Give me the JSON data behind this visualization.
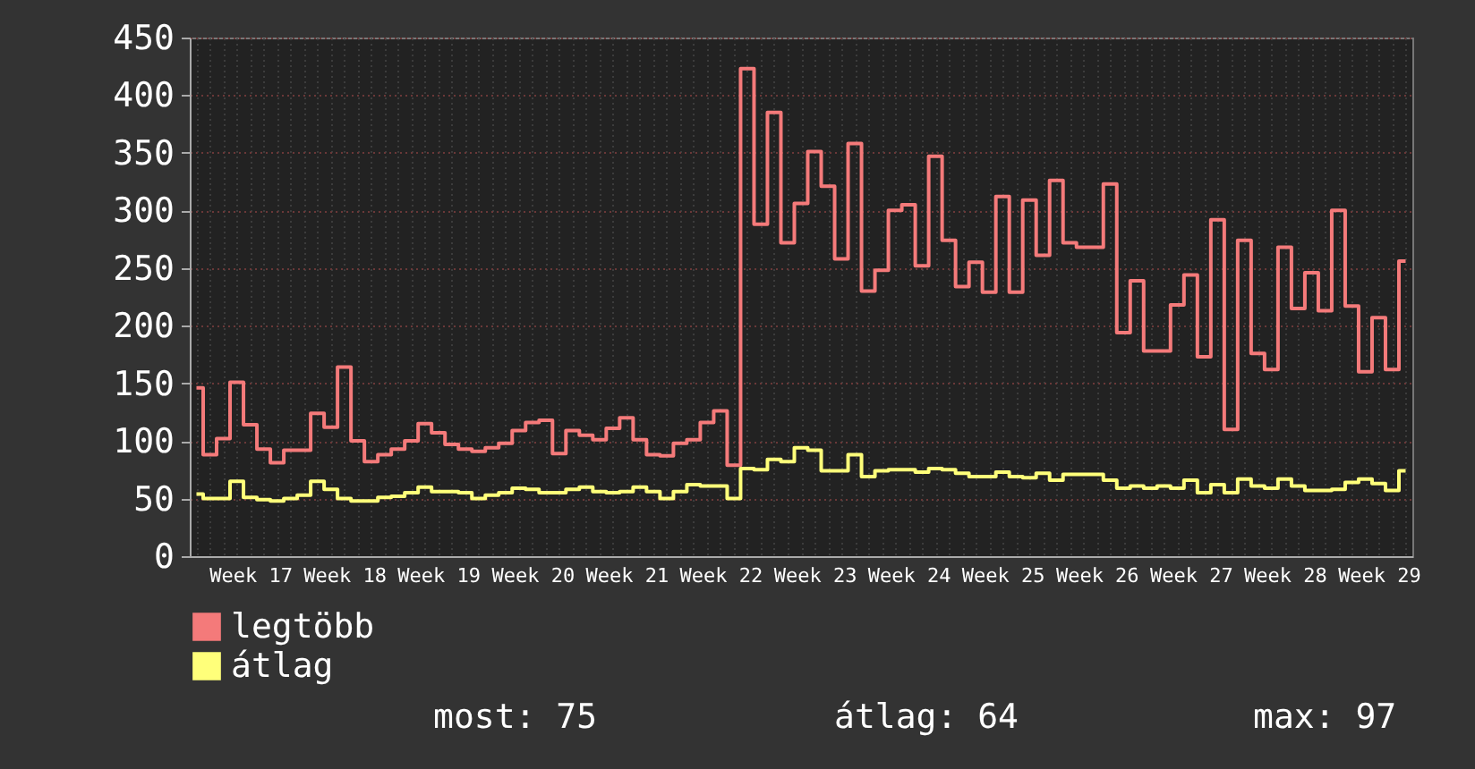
{
  "chart_data": {
    "type": "step",
    "categories": [
      null,
      null,
      null,
      null,
      "Week 17",
      null,
      null,
      null,
      null,
      null,
      null,
      "Week 18",
      null,
      null,
      null,
      null,
      null,
      null,
      "Week 19",
      null,
      null,
      null,
      null,
      null,
      null,
      "Week 20",
      null,
      null,
      null,
      null,
      null,
      null,
      "Week 21",
      null,
      null,
      null,
      null,
      null,
      null,
      "Week 22",
      null,
      null,
      null,
      null,
      null,
      null,
      "Week 23",
      null,
      null,
      null,
      null,
      null,
      null,
      "Week 24",
      null,
      null,
      null,
      null,
      null,
      null,
      "Week 25",
      null,
      null,
      null,
      null,
      null,
      null,
      "Week 26",
      null,
      null,
      null,
      null,
      null,
      null,
      "Week 27",
      null,
      null,
      null,
      null,
      null,
      null,
      "Week 28",
      null,
      null,
      null,
      null,
      null,
      null,
      "Week 29",
      null,
      null
    ],
    "ylim": [
      0,
      450
    ],
    "yticks": [
      0,
      50,
      100,
      150,
      200,
      250,
      300,
      350,
      400,
      450
    ],
    "grid": true,
    "legend": "bottom",
    "marker": "none",
    "series": [
      {
        "name": "legtöbb",
        "color": "#f47a7a",
        "values": [
          146,
          88,
          102,
          151,
          114,
          93,
          81,
          92,
          92,
          124,
          112,
          164,
          100,
          82,
          88,
          93,
          100,
          115,
          107,
          97,
          93,
          91,
          94,
          98,
          109,
          116,
          118,
          89,
          109,
          105,
          101,
          111,
          120,
          101,
          88,
          87,
          98,
          101,
          116,
          126,
          79,
          423,
          288,
          385,
          272,
          306,
          351,
          321,
          258,
          358,
          230,
          248,
          300,
          305,
          252,
          347,
          274,
          234,
          255,
          229,
          312,
          229,
          309,
          261,
          326,
          272,
          268,
          268,
          323,
          194,
          239,
          178,
          178,
          218,
          244,
          173,
          292,
          110,
          274,
          176,
          162,
          268,
          215,
          246,
          213,
          300,
          217,
          160,
          207,
          162,
          256
        ]
      },
      {
        "name": "átlag",
        "color": "#ffff7a",
        "values": [
          54,
          50,
          50,
          65,
          51,
          49,
          48,
          50,
          53,
          65,
          58,
          50,
          48,
          48,
          51,
          52,
          55,
          60,
          56,
          56,
          55,
          50,
          53,
          55,
          59,
          58,
          55,
          55,
          58,
          60,
          56,
          55,
          56,
          60,
          56,
          50,
          56,
          62,
          61,
          61,
          50,
          76,
          75,
          84,
          82,
          94,
          92,
          74,
          74,
          88,
          69,
          74,
          75,
          75,
          73,
          76,
          75,
          72,
          69,
          69,
          73,
          69,
          68,
          72,
          66,
          71,
          71,
          71,
          66,
          59,
          61,
          59,
          61,
          59,
          66,
          55,
          62,
          55,
          67,
          61,
          59,
          67,
          61,
          57,
          57,
          58,
          64,
          67,
          63,
          57,
          74
        ]
      }
    ],
    "annotations": [
      "most: 75",
      "átlag: 64",
      "max: 97"
    ]
  }
}
